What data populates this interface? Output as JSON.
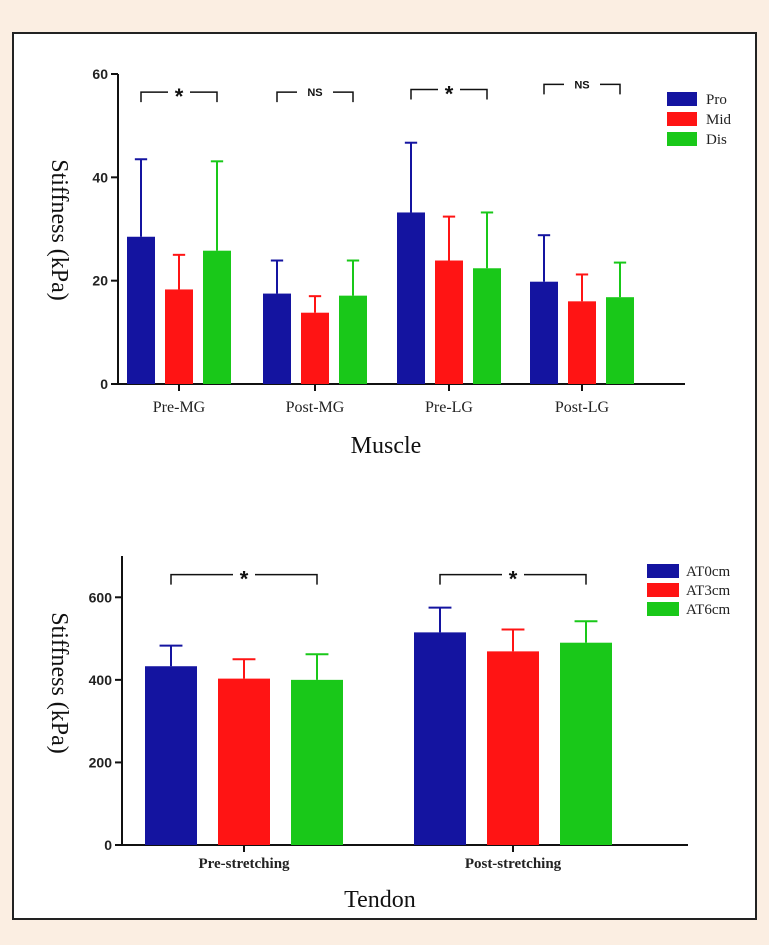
{
  "colors": {
    "blue": "#1414a0",
    "red": "#ff1414",
    "green": "#19c819",
    "axis": "#111111"
  },
  "chart_data": [
    {
      "type": "bar",
      "title": "",
      "xlabel": "Muscle",
      "ylabel": "Stiffness (kPa)",
      "ylim": [
        0,
        60
      ],
      "yticks": [
        0,
        20,
        40,
        60
      ],
      "ytick_labels": [
        "0",
        "20",
        "40",
        "60"
      ],
      "categories": [
        "Pre-MG",
        "Post-MG",
        "Pre-LG",
        "Post-LG"
      ],
      "legend_position": "top-right",
      "grid": false,
      "series": [
        {
          "name": "Pro",
          "color": "#1414a0",
          "values": [
            28.5,
            17.5,
            33.2,
            19.8
          ],
          "errors": [
            15.0,
            6.4,
            13.5,
            9.0
          ]
        },
        {
          "name": "Mid",
          "color": "#ff1414",
          "values": [
            18.3,
            13.8,
            23.9,
            16.0
          ],
          "errors": [
            6.7,
            3.2,
            8.5,
            5.2
          ]
        },
        {
          "name": "Dis",
          "color": "#19c819",
          "values": [
            25.8,
            17.1,
            22.4,
            16.8
          ],
          "errors": [
            17.3,
            6.8,
            10.8,
            6.7
          ]
        }
      ],
      "significance": [
        {
          "category_index": 0,
          "label": "*",
          "y": 56.5
        },
        {
          "category_index": 1,
          "label": "NS",
          "y": 56.5
        },
        {
          "category_index": 2,
          "label": "*",
          "y": 57.0
        },
        {
          "category_index": 3,
          "label": "NS",
          "y": 58.0
        }
      ]
    },
    {
      "type": "bar",
      "title": "",
      "xlabel": "Tendon",
      "ylabel": "Stiffness (kPa)",
      "ylim": [
        0,
        700
      ],
      "yticks": [
        0,
        200,
        400,
        600
      ],
      "ytick_labels": [
        "0",
        "200",
        "400",
        "600"
      ],
      "categories": [
        "Pre-stretching",
        "Post-stretching"
      ],
      "legend_position": "top-right",
      "grid": false,
      "series": [
        {
          "name": "AT0cm",
          "color": "#1414a0",
          "values": [
            433,
            515
          ],
          "errors": [
            50,
            60
          ]
        },
        {
          "name": "AT3cm",
          "color": "#ff1414",
          "values": [
            403,
            469
          ],
          "errors": [
            47,
            53
          ]
        },
        {
          "name": "AT6cm",
          "color": "#19c819",
          "values": [
            400,
            490
          ],
          "errors": [
            62,
            52
          ]
        }
      ],
      "significance": [
        {
          "category_index": 0,
          "label": "*",
          "y": 655
        },
        {
          "category_index": 1,
          "label": "*",
          "y": 655
        }
      ]
    }
  ]
}
